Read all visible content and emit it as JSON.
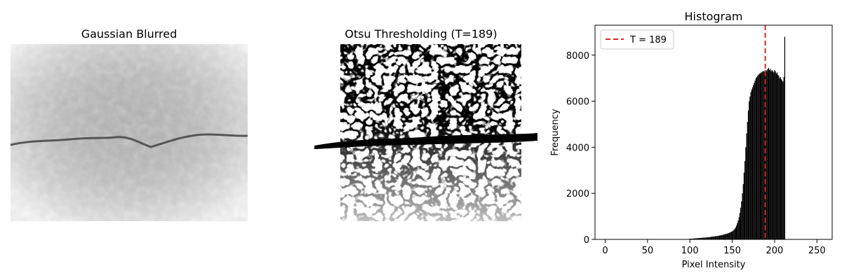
{
  "panels": [
    {
      "title": "Gaussian Blurred"
    },
    {
      "title": "Otsu Thresholding (T=189)"
    }
  ],
  "colors": {
    "bars": "#000000",
    "threshold": "#d62728",
    "image_bg": "#d9d9d9",
    "crack": "#4a4a4a"
  },
  "chart_data": {
    "type": "bar",
    "title": "Histogram",
    "xlabel": "Pixel Intensity",
    "ylabel": "Frequency",
    "xlim": [
      -12,
      268
    ],
    "ylim": [
      0,
      9300
    ],
    "x_ticks": [
      0,
      50,
      100,
      150,
      200,
      250
    ],
    "y_ticks": [
      0,
      2000,
      4000,
      6000,
      8000
    ],
    "grid": false,
    "legend_position": "top-left",
    "threshold": {
      "value": 189,
      "label": "T = 189"
    },
    "bins_x": [
      99,
      100,
      101,
      102,
      103,
      104,
      105,
      106,
      107,
      108,
      109,
      110,
      111,
      112,
      113,
      114,
      115,
      116,
      117,
      118,
      119,
      120,
      121,
      122,
      123,
      124,
      125,
      126,
      127,
      128,
      129,
      130,
      131,
      132,
      133,
      134,
      135,
      136,
      137,
      138,
      139,
      140,
      141,
      142,
      143,
      144,
      145,
      146,
      147,
      148,
      149,
      150,
      151,
      152,
      153,
      154,
      155,
      156,
      157,
      158,
      159,
      160,
      161,
      162,
      163,
      164,
      165,
      166,
      167,
      168,
      169,
      170,
      171,
      172,
      173,
      174,
      175,
      176,
      177,
      178,
      179,
      180,
      181,
      182,
      183,
      184,
      185,
      186,
      187,
      188,
      189,
      190,
      191,
      192,
      193,
      194,
      195,
      196,
      197,
      198,
      199,
      200,
      201,
      202,
      203,
      204,
      205,
      206,
      207,
      208,
      209,
      210,
      211,
      212
    ],
    "values": [
      20,
      25,
      30,
      30,
      35,
      35,
      40,
      45,
      45,
      50,
      55,
      55,
      60,
      60,
      65,
      70,
      70,
      75,
      80,
      80,
      85,
      90,
      95,
      95,
      100,
      105,
      110,
      115,
      120,
      125,
      130,
      135,
      140,
      145,
      150,
      160,
      165,
      175,
      180,
      190,
      200,
      210,
      220,
      230,
      240,
      250,
      265,
      280,
      295,
      310,
      330,
      350,
      380,
      410,
      460,
      520,
      600,
      700,
      820,
      960,
      1150,
      1380,
      1650,
      2000,
      2400,
      2900,
      3400,
      4000,
      4600,
      5100,
      5600,
      6000,
      6200,
      6400,
      6500,
      6600,
      6700,
      6800,
      6900,
      7000,
      7050,
      7100,
      7150,
      7200,
      7200,
      7250,
      7250,
      7300,
      7300,
      7300,
      7350,
      7300,
      7350,
      7400,
      7450,
      7350,
      7400,
      7300,
      7350,
      7300,
      7250,
      7350,
      7300,
      7200,
      7250,
      7150,
      7100,
      7000,
      7050,
      6950,
      6900,
      6850,
      7050,
      8800
    ]
  }
}
